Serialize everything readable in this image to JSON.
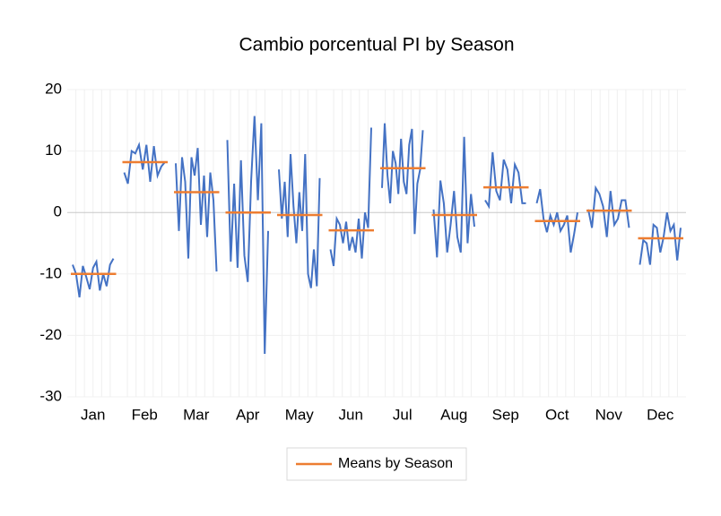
{
  "chart_data": {
    "type": "seasonal",
    "title": "Cambio porcentual PI by Season",
    "categories": [
      "Jan",
      "Feb",
      "Mar",
      "Apr",
      "May",
      "Jun",
      "Jul",
      "Aug",
      "Sep",
      "Oct",
      "Nov",
      "Dec"
    ],
    "line_color": "#4472c4",
    "cycles": [
      [
        -8.5,
        -10,
        -13.8,
        -8.7,
        -10.5,
        -12.5,
        -9,
        -8,
        -12.7,
        -10,
        -12,
        -8.5,
        -7.5
      ],
      [
        6.5,
        4.7,
        10,
        9.6,
        11,
        7,
        11,
        5,
        10.8,
        6,
        7.5,
        8.2
      ],
      [
        8,
        -3,
        9,
        5,
        -7.5,
        9,
        6,
        10.5,
        -2,
        6,
        -4,
        6.5,
        2,
        -9.6
      ],
      [
        11.8,
        -8,
        4.7,
        -9,
        8.5,
        -7,
        -11.3,
        5,
        15.7,
        2,
        14.5,
        -23,
        -3
      ],
      [
        7,
        -1,
        5,
        -4,
        9.5,
        1,
        -5,
        3.3,
        -3,
        9.5,
        -10,
        -12.3,
        -6,
        -12,
        5.6
      ],
      [
        -6,
        -8.7,
        -1,
        -2,
        -5,
        -1.5,
        -6.2,
        -4,
        -6.5,
        -1,
        -7.5,
        0,
        -2.5,
        13.8
      ],
      [
        4,
        14.5,
        6,
        1.5,
        10,
        8,
        3,
        12,
        5,
        3,
        11,
        13.6,
        -3.5,
        4.7,
        7,
        13.4
      ],
      [
        0.5,
        -7.3,
        5.2,
        1.5,
        -6.5,
        -2,
        3.5,
        -4,
        -6.5,
        12.3,
        -5,
        3,
        -2.3
      ],
      [
        2,
        1,
        9.8,
        3.5,
        2,
        8.6,
        7,
        1.5,
        7.8,
        6.5,
        1.5,
        1.5
      ],
      [
        1.5,
        3.8,
        -1,
        -3.2,
        -0.5,
        -2,
        0,
        -3,
        -2,
        -0.5,
        -6.5,
        -3.5,
        0
      ],
      [
        0.5,
        -2.5,
        4,
        3,
        1,
        -4,
        3.5,
        -2,
        -1,
        2,
        2,
        -2.5
      ],
      [
        -8.5,
        -4.5,
        -5,
        -8.5,
        -2,
        -2.5,
        -6.5,
        -4,
        0,
        -3,
        -2,
        -7.8,
        -2.5
      ]
    ],
    "means": {
      "name": "Means by Season",
      "color": "#ed7d31",
      "values": [
        -10,
        8.2,
        3.3,
        0,
        -0.4,
        -2.9,
        7.2,
        -0.4,
        4.1,
        -1.4,
        0.3,
        -4.2
      ]
    },
    "ylim": [
      -30,
      20
    ],
    "yticks": [
      -30,
      -20,
      -10,
      0,
      10,
      20
    ],
    "grid": true
  }
}
